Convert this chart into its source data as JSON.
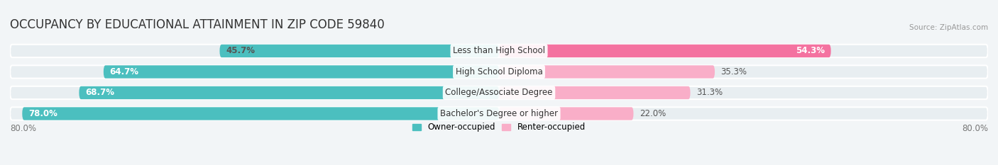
{
  "title": "OCCUPANCY BY EDUCATIONAL ATTAINMENT IN ZIP CODE 59840",
  "source": "Source: ZipAtlas.com",
  "categories": [
    "Less than High School",
    "High School Diploma",
    "College/Associate Degree",
    "Bachelor's Degree or higher"
  ],
  "owner_values": [
    45.7,
    64.7,
    68.7,
    78.0
  ],
  "renter_values": [
    54.3,
    35.3,
    31.3,
    22.0
  ],
  "owner_color": "#4bbfbf",
  "renter_color": "#f472a0",
  "renter_color_light": "#f9aec8",
  "background_color": "#f2f5f7",
  "bar_bg_color": "#e8eef1",
  "title_fontsize": 12,
  "label_fontsize": 8.5,
  "tick_fontsize": 8.5,
  "x_left_label": "80.0%",
  "x_right_label": "80.0%",
  "bar_height": 0.62,
  "owner_label_colors": [
    "#555555",
    "#ffffff",
    "#ffffff",
    "#ffffff"
  ],
  "renter_label_colors": [
    "#ffffff",
    "#555555",
    "#555555",
    "#555555"
  ]
}
